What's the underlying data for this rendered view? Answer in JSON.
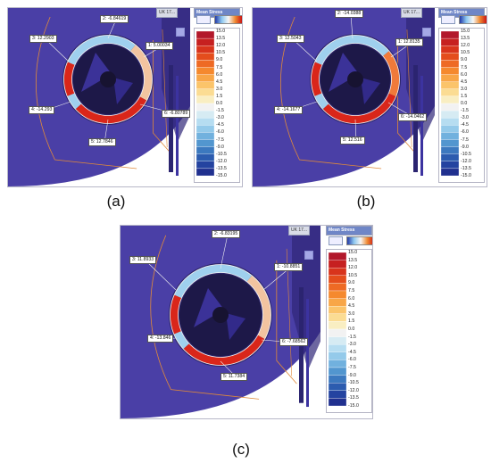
{
  "panels": [
    {
      "id": "a",
      "caption": "(a)",
      "view_label": "UK 17...",
      "legend_title": "Mean Stress",
      "labels": [
        {
          "text": "2: -6.84619"
        },
        {
          "text": "3: 12.2903"
        },
        {
          "text": "1: 5.00034"
        },
        {
          "text": "4: -14.293"
        },
        {
          "text": "6: -6.80789"
        },
        {
          "text": "5: 12.7846"
        }
      ]
    },
    {
      "id": "b",
      "caption": "(b)",
      "view_label": "UK 17...",
      "legend_title": "Mean Stress",
      "labels": [
        {
          "text": "2: -14.0388"
        },
        {
          "text": "3: 12.5043"
        },
        {
          "text": "1: 12.8135"
        },
        {
          "text": "4: -14.1677"
        },
        {
          "text": "6: -14.0462"
        },
        {
          "text": "5: 12.516"
        }
      ]
    },
    {
      "id": "c",
      "caption": "(c)",
      "view_label": "UK 17...",
      "legend_title": "Mean Stress",
      "labels": [
        {
          "text": "2: -6.83195"
        },
        {
          "text": "3: 11.8933"
        },
        {
          "text": "1: -10.8851"
        },
        {
          "text": "4: -13.846"
        },
        {
          "text": "6: -7.68562"
        },
        {
          "text": "5: 11.7384"
        }
      ]
    }
  ],
  "legend_ticks": [
    "15.0",
    "13.5",
    "12.0",
    "10.5",
    "9.0",
    "7.5",
    "6.0",
    "4.5",
    "3.0",
    "1.5",
    "0.0",
    "-1.5",
    "-3.0",
    "-4.5",
    "-6.0",
    "-7.5",
    "-9.0",
    "-10.5",
    "-12.0",
    "-13.5",
    "-15.0"
  ],
  "legend_colors": [
    "#b2182b",
    "#c62020",
    "#d8341c",
    "#e44d1c",
    "#ee6a24",
    "#f5892e",
    "#f8a647",
    "#fbc46a",
    "#fbdc93",
    "#f9eec2",
    "#f2f2f2",
    "#d6ebf3",
    "#b6ddf1",
    "#94caea",
    "#71b1de",
    "#5296cf",
    "#3c79bf",
    "#2c5caf",
    "#2443a0",
    "#20308f"
  ],
  "colors": {
    "part_fill": "#4a3fa6",
    "part_dark": "#2f2777",
    "ring_red": "#d9261a",
    "ring_blue": "#9fd0ee"
  }
}
